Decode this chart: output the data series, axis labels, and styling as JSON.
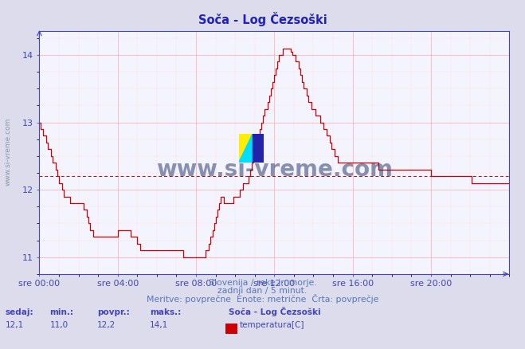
{
  "title": "Soča - Log Čezsoški",
  "subtitle1": "Slovenija / reke in morje.",
  "subtitle2": "zadnji dan / 5 minut.",
  "subtitle3": "Meritve: povprečne  Enote: metrične  Črta: povprečje",
  "ylabel_side": "www.si-vreme.com",
  "xlabel_ticks": [
    "sre 00:00",
    "sre 04:00",
    "sre 08:00",
    "sre 12:00",
    "sre 16:00",
    "sre 20:00"
  ],
  "xtick_positions": [
    0,
    48,
    96,
    144,
    192,
    240
  ],
  "yticks": [
    11,
    12,
    13,
    14
  ],
  "ylim": [
    10.75,
    14.35
  ],
  "xlim": [
    0,
    288
  ],
  "avg_value": 12.2,
  "line_color": "#cc0000",
  "avg_line_color": "#cc0000",
  "grid_color_major": "#ffaaaa",
  "grid_color_minor": "#ffdddd",
  "bg_color": "#f4f4ff",
  "axis_color": "#4444bb",
  "title_color": "#2222bb",
  "text_color": "#5577bb",
  "sedaj": "12,1",
  "min_val": "11,0",
  "povpr": "12,2",
  "maks": "14,1",
  "legend_title": "Soča - Log Čezsoški",
  "legend_label": "temperatura[C]",
  "legend_color": "#cc0000",
  "watermark_text": "www.si-vreme.com",
  "watermark_color": "#1a3060",
  "temperature_data": [
    13.0,
    12.9,
    12.8,
    12.8,
    12.7,
    12.6,
    12.6,
    12.5,
    12.4,
    12.4,
    12.3,
    12.2,
    12.1,
    12.1,
    12.0,
    11.9,
    11.9,
    11.9,
    11.9,
    11.8,
    11.8,
    11.8,
    11.8,
    11.8,
    11.8,
    11.8,
    11.8,
    11.7,
    11.7,
    11.6,
    11.5,
    11.4,
    11.4,
    11.3,
    11.3,
    11.3,
    11.3,
    11.3,
    11.3,
    11.3,
    11.3,
    11.3,
    11.3,
    11.3,
    11.3,
    11.3,
    11.3,
    11.3,
    11.4,
    11.4,
    11.4,
    11.4,
    11.4,
    11.4,
    11.4,
    11.4,
    11.3,
    11.3,
    11.3,
    11.3,
    11.2,
    11.2,
    11.1,
    11.1,
    11.1,
    11.1,
    11.1,
    11.1,
    11.1,
    11.1,
    11.1,
    11.1,
    11.1,
    11.1,
    11.1,
    11.1,
    11.1,
    11.1,
    11.1,
    11.1,
    11.1,
    11.1,
    11.1,
    11.1,
    11.1,
    11.1,
    11.1,
    11.1,
    11.0,
    11.0,
    11.0,
    11.0,
    11.0,
    11.0,
    11.0,
    11.0,
    11.0,
    11.0,
    11.0,
    11.0,
    11.0,
    11.0,
    11.1,
    11.1,
    11.2,
    11.3,
    11.4,
    11.5,
    11.6,
    11.7,
    11.8,
    11.9,
    11.9,
    11.8,
    11.8,
    11.8,
    11.8,
    11.8,
    11.8,
    11.9,
    11.9,
    11.9,
    11.9,
    12.0,
    12.0,
    12.1,
    12.1,
    12.1,
    12.2,
    12.3,
    12.4,
    12.5,
    12.6,
    12.7,
    12.8,
    12.9,
    13.0,
    13.1,
    13.2,
    13.2,
    13.3,
    13.4,
    13.5,
    13.6,
    13.7,
    13.8,
    13.9,
    14.0,
    14.0,
    14.1,
    14.1,
    14.1,
    14.1,
    14.1,
    14.05,
    14.0,
    14.0,
    13.9,
    13.9,
    13.8,
    13.7,
    13.6,
    13.5,
    13.5,
    13.4,
    13.3,
    13.3,
    13.2,
    13.2,
    13.1,
    13.1,
    13.1,
    13.0,
    13.0,
    12.9,
    12.9,
    12.8,
    12.8,
    12.7,
    12.6,
    12.6,
    12.5,
    12.5,
    12.4,
    12.4,
    12.4,
    12.4,
    12.4,
    12.4,
    12.4,
    12.4,
    12.4,
    12.4,
    12.4,
    12.4,
    12.4,
    12.4,
    12.4,
    12.4,
    12.4,
    12.4,
    12.4,
    12.4,
    12.4,
    12.4,
    12.4,
    12.4,
    12.4,
    12.3,
    12.3,
    12.3,
    12.3,
    12.3,
    12.3,
    12.3,
    12.3,
    12.3,
    12.3,
    12.3,
    12.3,
    12.3,
    12.3,
    12.3,
    12.3,
    12.3,
    12.3,
    12.3,
    12.3,
    12.3,
    12.3,
    12.3,
    12.3,
    12.3,
    12.3,
    12.3,
    12.3,
    12.3,
    12.3,
    12.3,
    12.3,
    12.2,
    12.2,
    12.2,
    12.2,
    12.2,
    12.2,
    12.2,
    12.2,
    12.2,
    12.2,
    12.2,
    12.2,
    12.2,
    12.2,
    12.2,
    12.2,
    12.2,
    12.2,
    12.2,
    12.2,
    12.2,
    12.2,
    12.2,
    12.2,
    12.2,
    12.1,
    12.1,
    12.1,
    12.1,
    12.1,
    12.1,
    12.1,
    12.1,
    12.1,
    12.1,
    12.1,
    12.1,
    12.1,
    12.1,
    12.1,
    12.1,
    12.1,
    12.1,
    12.1,
    12.1,
    12.1,
    12.1,
    12.1,
    12.1,
    12.1,
    12.1,
    12.1,
    12.0,
    12.0,
    12.0,
    12.0,
    12.0,
    12.0,
    12.0,
    12.0
  ]
}
